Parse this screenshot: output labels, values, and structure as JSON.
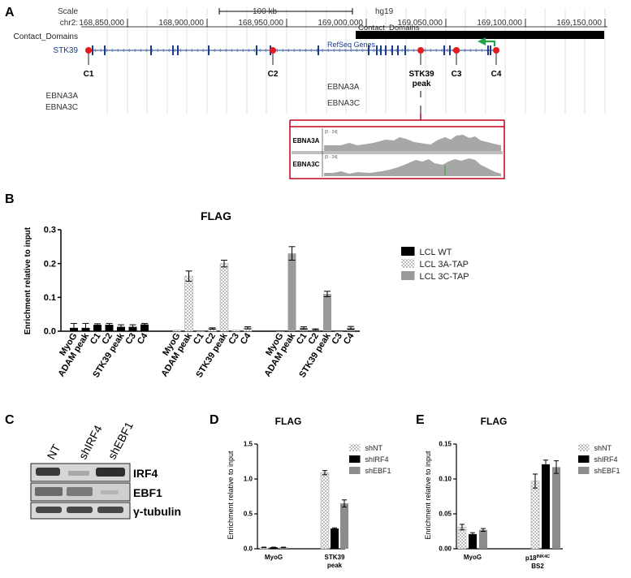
{
  "panel_letters": {
    "a": "A",
    "b": "B",
    "c": "C",
    "d": "D",
    "e": "E"
  },
  "panel_a": {
    "track_labels": {
      "scale": "Scale",
      "chr": "chr2:",
      "contact_domains": "Contact_Domains",
      "gene": "STK39",
      "ebna3a": "EBNA3A",
      "ebna3c": "EBNA3C"
    },
    "scale_bar_label": "100 kb",
    "assembly": "hg19",
    "coordinates": [
      "168,850,000",
      "168,900,000",
      "168,950,000",
      "169,000,000",
      "169,050,000",
      "169,100,000",
      "169,150,000"
    ],
    "contact_domains_track_text": "Contact_Domains",
    "refseq_text": "RefSeq Genes",
    "sites": [
      "C1",
      "C2",
      "STK39",
      "peak",
      "C3",
      "C4"
    ],
    "peak_track_labels": {
      "ebna3a": "EBNA3A",
      "ebna3c": "EBNA3C"
    },
    "inset": {
      "labels": [
        "EBNA3A",
        "EBNA3C"
      ],
      "range": "[0 - 24]"
    }
  },
  "panel_b": {
    "chart_data": {
      "type": "bar",
      "title": "FLAG",
      "ylabel": "Enrichment relative to input",
      "ylim": [
        0,
        0.3
      ],
      "yticks": [
        "0.0",
        "0.1",
        "0.2",
        "0.3"
      ],
      "categories": [
        "MyoG",
        "ADAM peak",
        "C1",
        "C2",
        "STK39 peak",
        "C3",
        "C4"
      ],
      "series": [
        {
          "name": "LCL WT",
          "values": [
            0.01,
            0.01,
            0.019,
            0.019,
            0.013,
            0.013,
            0.02
          ],
          "errors": [
            0.013,
            0.013,
            0.003,
            0.004,
            0.006,
            0.006,
            0.003
          ],
          "color": "#000000",
          "pattern": "solid"
        },
        {
          "name": "LCL 3A-TAP",
          "values": [
            0.003,
            0.163,
            0.0,
            0.008,
            0.2,
            0.003,
            0.01
          ],
          "errors": [
            0.0,
            0.015,
            0.0,
            0.002,
            0.01,
            0.0,
            0.003
          ],
          "color": "#bdbdbd",
          "pattern": "checker"
        },
        {
          "name": "LCL 3C-TAP",
          "values": [
            0.0,
            0.23,
            0.01,
            0.005,
            0.11,
            0.0,
            0.01
          ],
          "errors": [
            0.0,
            0.02,
            0.003,
            0.002,
            0.008,
            0.0,
            0.004
          ],
          "color": "#9a9a9a",
          "pattern": "solid"
        }
      ]
    }
  },
  "panel_c": {
    "lanes": [
      "NT",
      "shIRF4",
      "shEBF1"
    ],
    "bands": [
      "IRF4",
      "EBF1",
      "γ-tubulin"
    ]
  },
  "panel_d": {
    "chart_data": {
      "type": "bar",
      "title": "FLAG",
      "ylabel": "Enrichment relative to input",
      "ylim": [
        0,
        1.5
      ],
      "yticks": [
        "0.0",
        "0.5",
        "1.0",
        "1.5"
      ],
      "categories": [
        "MyoG",
        "STK39 peak"
      ],
      "category_lines": [
        [
          "MyoG"
        ],
        [
          "STK39",
          "peak"
        ]
      ],
      "series": [
        {
          "name": "shNT",
          "values": [
            0.02,
            1.09
          ],
          "errors": [
            0.003,
            0.03
          ],
          "color": "#c8c8c8",
          "pattern": "checker"
        },
        {
          "name": "shIRF4",
          "values": [
            0.02,
            0.29
          ],
          "errors": [
            0.003,
            0.01
          ],
          "color": "#000000",
          "pattern": "solid"
        },
        {
          "name": "shEBF1",
          "values": [
            0.02,
            0.65
          ],
          "errors": [
            0.003,
            0.05
          ],
          "color": "#8c8c8c",
          "pattern": "solid"
        }
      ]
    }
  },
  "panel_e": {
    "chart_data": {
      "type": "bar",
      "title": "FLAG",
      "ylabel": "Enrichment relative to input",
      "ylim": [
        0,
        0.15
      ],
      "yticks": [
        "0.00",
        "0.05",
        "0.10",
        "0.15"
      ],
      "categories": [
        "MyoG",
        "p18INK4C BS2"
      ],
      "category_lines": [
        [
          "MyoG"
        ],
        [
          "p18",
          "INK4C",
          "BS2"
        ]
      ],
      "series": [
        {
          "name": "shNT",
          "values": [
            0.031,
            0.097
          ],
          "errors": [
            0.004,
            0.01
          ],
          "color": "#c8c8c8",
          "pattern": "checker"
        },
        {
          "name": "shIRF4",
          "values": [
            0.021,
            0.121
          ],
          "errors": [
            0.002,
            0.006
          ],
          "color": "#000000",
          "pattern": "solid"
        },
        {
          "name": "shEBF1",
          "values": [
            0.027,
            0.117
          ],
          "errors": [
            0.002,
            0.009
          ],
          "color": "#8c8c8c",
          "pattern": "solid"
        }
      ]
    }
  }
}
